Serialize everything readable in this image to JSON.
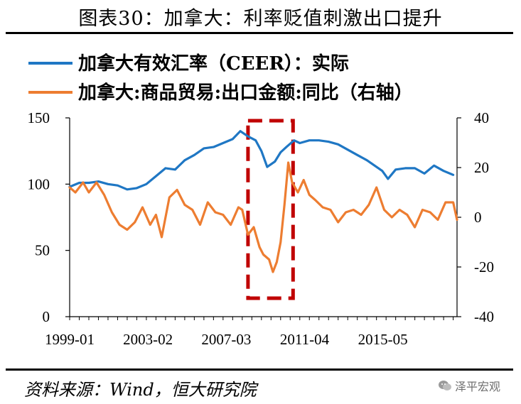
{
  "title": "图表30：加拿大：利率贬值刺激出口提升",
  "source": "资料来源：Wind，恒大研究院",
  "watermark": "泽平宏观",
  "watermark_icon": "wechat-icon",
  "chart_data": {
    "type": "line",
    "title": "图表30：加拿大：利率贬值刺激出口提升",
    "x_tick_labels": [
      "1999-01",
      "2003-02",
      "2007-03",
      "2011-04",
      "2015-05"
    ],
    "x_range": [
      1999.0,
      2019.2
    ],
    "y_left": {
      "ticks": [
        "150",
        "100",
        "50",
        "0"
      ],
      "range": [
        0,
        150
      ]
    },
    "y_right": {
      "ticks": [
        "40",
        "20",
        "0",
        "-20",
        "-40"
      ],
      "range": [
        -40,
        40
      ]
    },
    "annotation": "dashed red box around 2008-04 to 2010-01",
    "highlight_range": [
      2008.3,
      2010.65
    ],
    "series": [
      {
        "name": "加拿大有效汇率（CEER）：实际",
        "axis": "left",
        "color": "#1f77c4",
        "x": [
          1999.0,
          1999.5,
          2000.0,
          2000.5,
          2001.0,
          2001.5,
          2002.0,
          2002.5,
          2003.0,
          2003.5,
          2004.0,
          2004.5,
          2005.0,
          2005.5,
          2006.0,
          2006.5,
          2007.0,
          2007.5,
          2007.9,
          2008.3,
          2008.7,
          2009.0,
          2009.3,
          2009.7,
          2010.0,
          2010.3,
          2010.7,
          2011.0,
          2011.5,
          2012.0,
          2012.5,
          2013.0,
          2013.5,
          2014.0,
          2014.5,
          2015.0,
          2015.3,
          2015.6,
          2016.0,
          2016.5,
          2017.0,
          2017.5,
          2018.0,
          2018.5,
          2019.0
        ],
        "values": [
          98,
          101,
          101,
          102,
          100,
          99,
          96,
          97,
          100,
          106,
          112,
          111,
          118,
          122,
          127,
          128,
          131,
          134,
          140,
          136,
          133,
          125,
          113,
          117,
          124,
          128,
          133,
          131,
          133,
          133,
          132,
          130,
          126,
          122,
          118,
          113,
          110,
          104,
          111,
          112,
          112,
          108,
          114,
          110,
          107
        ]
      },
      {
        "name": "加拿大:商品贸易:出口金额:同比（右轴）",
        "axis": "right",
        "color": "#ed7d31",
        "x": [
          1999.0,
          1999.3,
          1999.7,
          2000.0,
          2000.4,
          2000.8,
          2001.2,
          2001.6,
          2002.0,
          2002.4,
          2002.8,
          2003.2,
          2003.5,
          2003.8,
          2004.2,
          2004.6,
          2005.0,
          2005.4,
          2005.8,
          2006.2,
          2006.6,
          2007.0,
          2007.4,
          2007.8,
          2008.0,
          2008.3,
          2008.6,
          2008.9,
          2009.1,
          2009.4,
          2009.6,
          2009.8,
          2010.0,
          2010.2,
          2010.4,
          2010.6,
          2010.9,
          2011.2,
          2011.5,
          2011.8,
          2012.2,
          2012.6,
          2013.0,
          2013.4,
          2013.8,
          2014.2,
          2014.6,
          2015.0,
          2015.4,
          2015.8,
          2016.2,
          2016.6,
          2017.0,
          2017.4,
          2017.8,
          2018.2,
          2018.6,
          2019.0,
          2019.2
        ],
        "values": [
          12,
          10,
          14,
          10,
          14,
          9,
          2,
          -3,
          -5,
          -2,
          4,
          -3,
          1,
          -8,
          8,
          11,
          5,
          3,
          -3,
          6,
          2,
          1,
          -3,
          4,
          3,
          -7,
          -4,
          -12,
          -15,
          -17,
          -22,
          -18,
          -10,
          5,
          22,
          14,
          10,
          15,
          9,
          7,
          4,
          3,
          -2,
          2,
          3,
          1,
          5,
          12,
          3,
          0,
          3,
          1,
          -4,
          3,
          2,
          -1,
          6,
          6,
          -1
        ]
      }
    ]
  }
}
